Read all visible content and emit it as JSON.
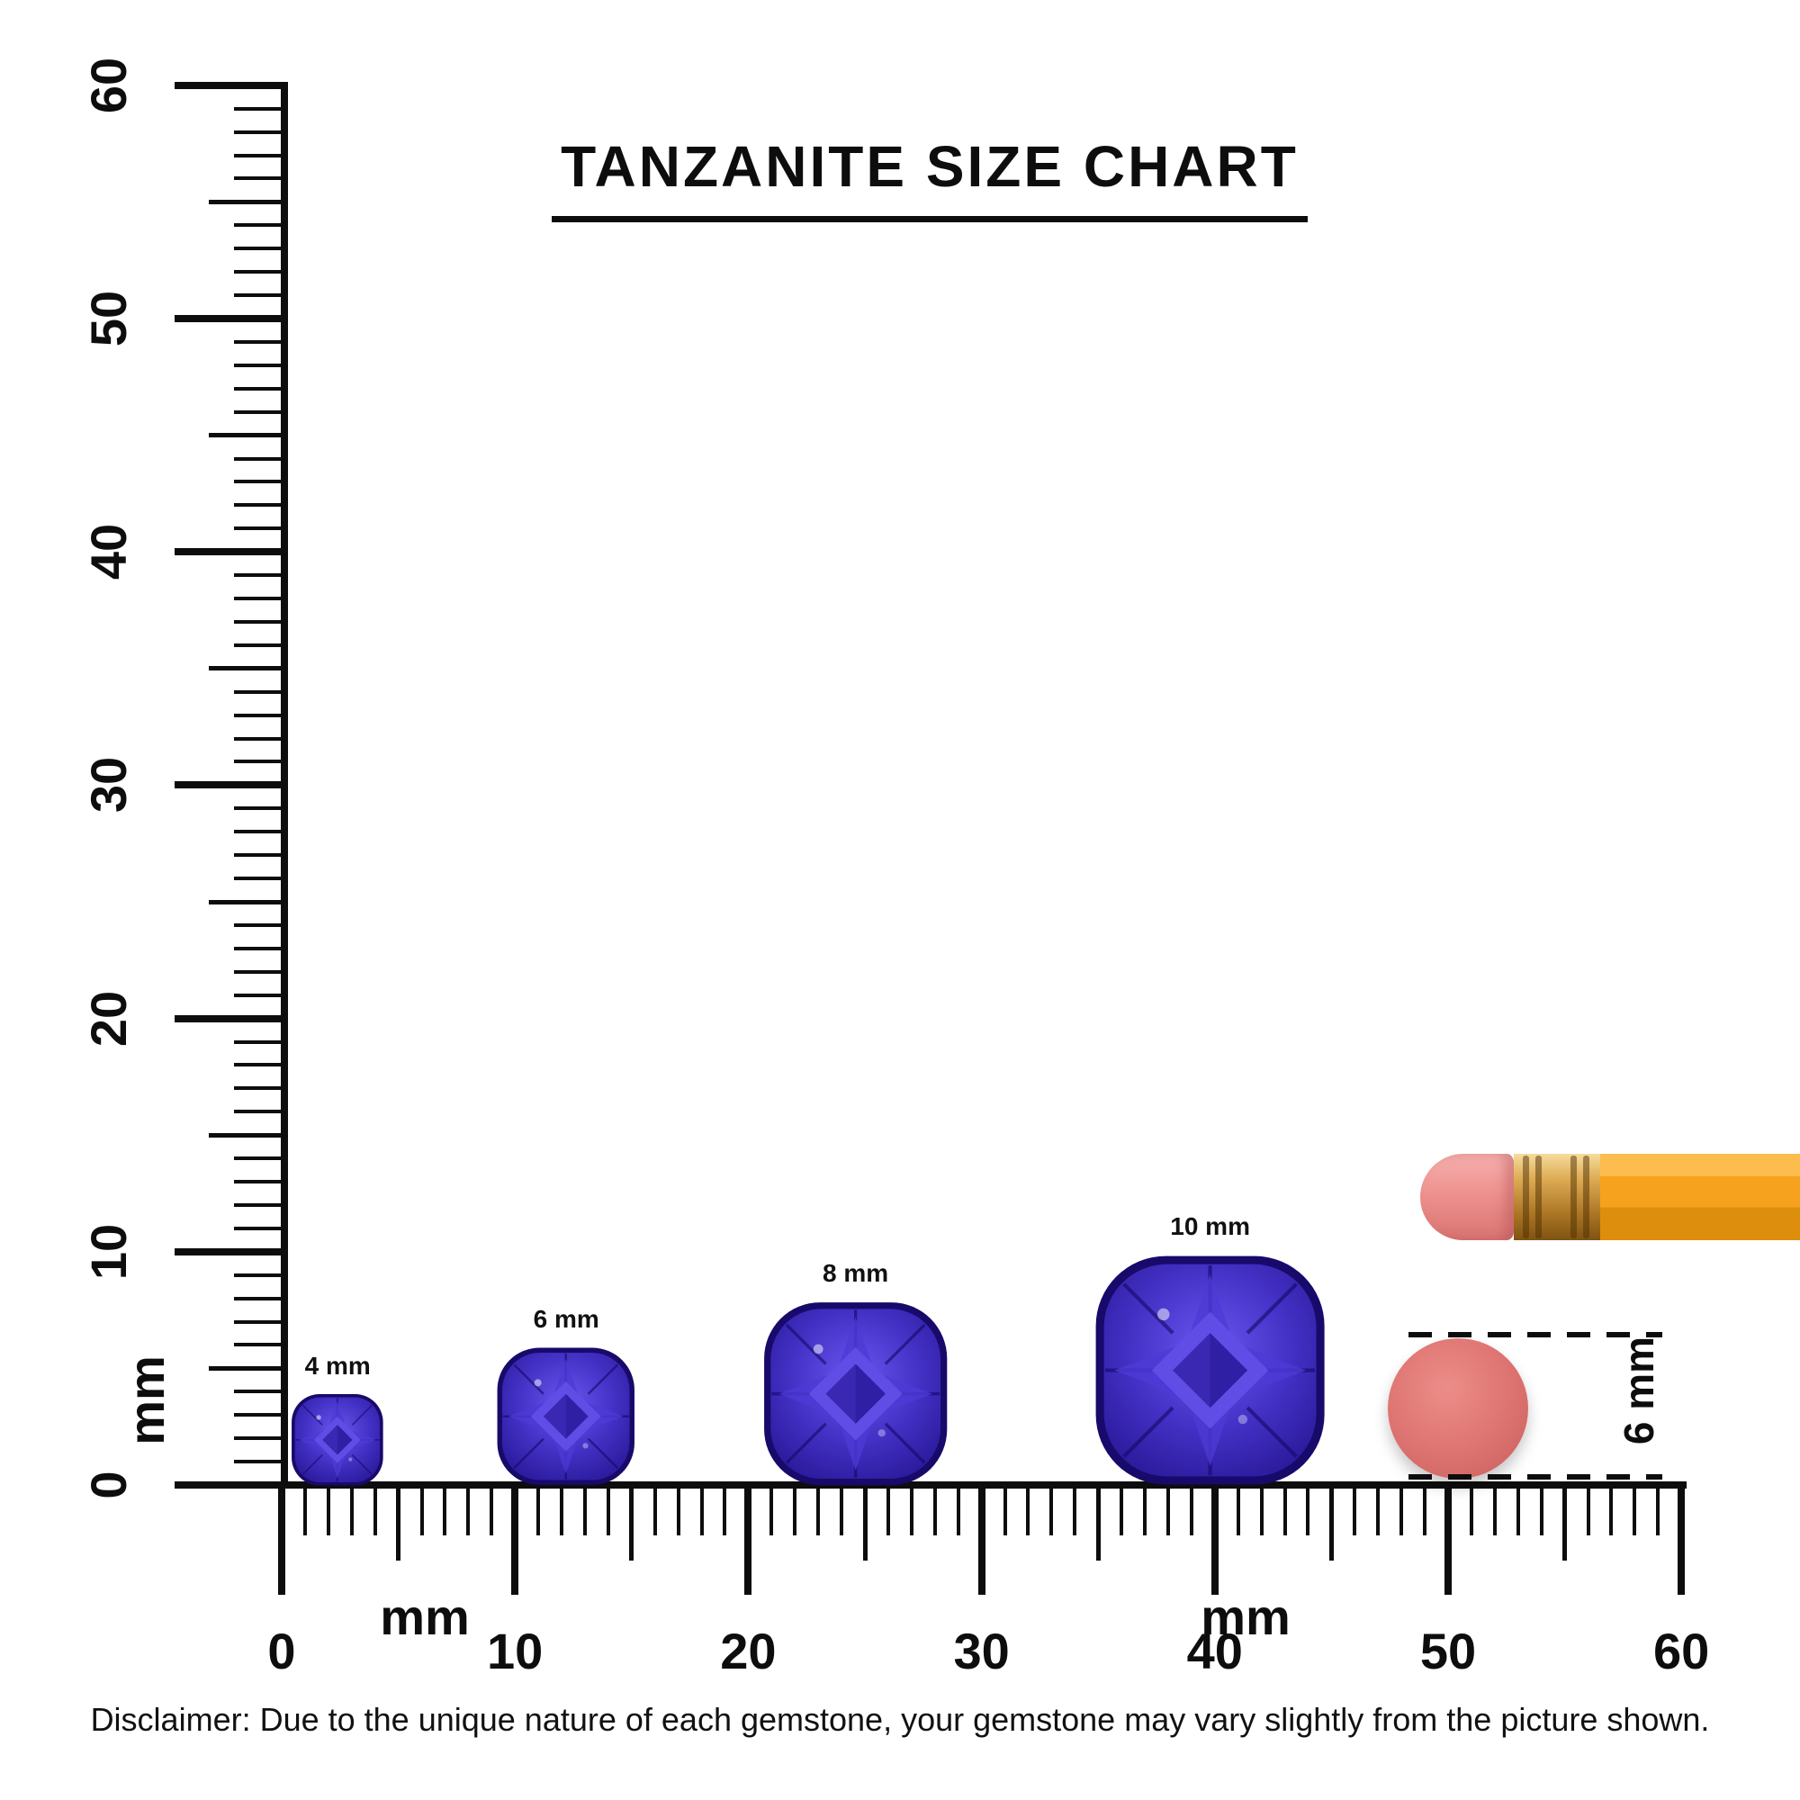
{
  "title": "TANZANITE SIZE CHART",
  "rulers": {
    "vertical": {
      "unit": "mm",
      "major_labels": [
        "0",
        "10",
        "20",
        "30",
        "40",
        "50",
        "60"
      ],
      "min_mm": 0,
      "max_mm": 60
    },
    "horizontal": {
      "unit_left": "mm",
      "unit_right": "mm",
      "major_labels": [
        "0",
        "10",
        "20",
        "30",
        "40",
        "50",
        "60"
      ],
      "min_mm": 0,
      "max_mm": 60
    }
  },
  "gems": [
    {
      "label": "4 mm",
      "size_mm": 4
    },
    {
      "label": "6 mm",
      "size_mm": 6
    },
    {
      "label": "8 mm",
      "size_mm": 8
    },
    {
      "label": "10 mm",
      "size_mm": 10
    }
  ],
  "eraser_measure": {
    "label": "6 mm",
    "size_mm": 6
  },
  "disclaimer": "Disclaimer: Due to the unique nature of each gemstone, your gemstone may vary slightly from the picture shown.",
  "colors": {
    "ink": "#0d0d0d",
    "gem_dark": "#2a1a9a",
    "gem_mid": "#4431c6",
    "gem_light": "#6a57ee",
    "pencil_body": "#f7a21f",
    "ferrule_gold": "#c9963f",
    "eraser_pink": "#ee928f",
    "eraser_top_view": "#dd7370"
  }
}
